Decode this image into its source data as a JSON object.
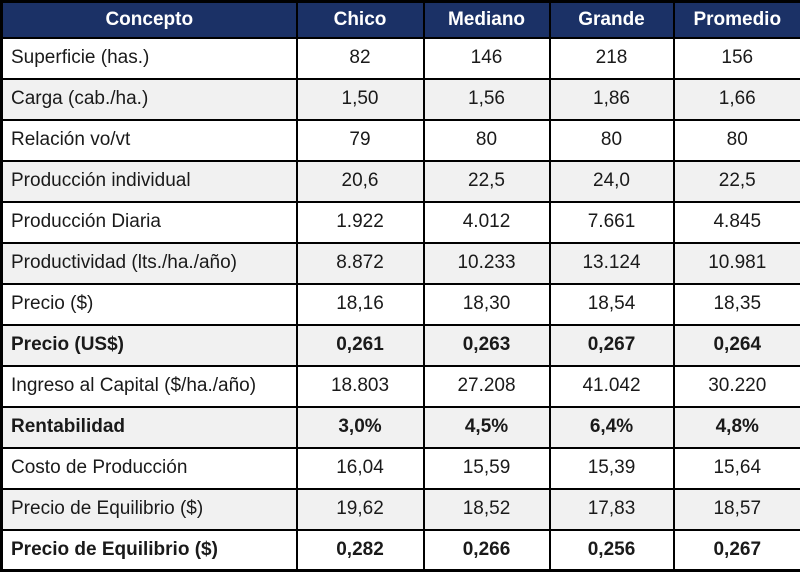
{
  "colors": {
    "header_bg": "#1B3166",
    "header_text": "#FFFFFF",
    "stripe_bg": "#F1F1F1",
    "border": "#000000"
  },
  "chart_data": {
    "type": "table",
    "title": "",
    "columns": [
      "Concepto",
      "Chico",
      "Mediano",
      "Grande",
      "Promedio"
    ],
    "rows": [
      {
        "label": "Superficie (has.)",
        "values": [
          "82",
          "146",
          "218",
          "156"
        ],
        "bold": false
      },
      {
        "label": "Carga (cab./ha.)",
        "values": [
          "1,50",
          "1,56",
          "1,86",
          "1,66"
        ],
        "bold": false
      },
      {
        "label": "Relación vo/vt",
        "values": [
          "79",
          "80",
          "80",
          "80"
        ],
        "bold": false
      },
      {
        "label": "Producción individual",
        "values": [
          "20,6",
          "22,5",
          "24,0",
          "22,5"
        ],
        "bold": false
      },
      {
        "label": "Producción Diaria",
        "values": [
          "1.922",
          "4.012",
          "7.661",
          "4.845"
        ],
        "bold": false
      },
      {
        "label": "Productividad (lts./ha./año)",
        "values": [
          "8.872",
          "10.233",
          "13.124",
          "10.981"
        ],
        "bold": false
      },
      {
        "label": "Precio ($)",
        "values": [
          "18,16",
          "18,30",
          "18,54",
          "18,35"
        ],
        "bold": false
      },
      {
        "label": "Precio (US$)",
        "values": [
          "0,261",
          "0,263",
          "0,267",
          "0,264"
        ],
        "bold": true
      },
      {
        "label": "Ingreso al Capital ($/ha./año)",
        "values": [
          "18.803",
          "27.208",
          "41.042",
          "30.220"
        ],
        "bold": false
      },
      {
        "label": "Rentabilidad",
        "values": [
          "3,0%",
          "4,5%",
          "6,4%",
          "4,8%"
        ],
        "bold": true
      },
      {
        "label": "Costo de Producción",
        "values": [
          "16,04",
          "15,59",
          "15,39",
          "15,64"
        ],
        "bold": false
      },
      {
        "label": "Precio de Equilibrio ($)",
        "values": [
          "19,62",
          "18,52",
          "17,83",
          "18,57"
        ],
        "bold": false
      },
      {
        "label": "Precio de Equilibrio ($)",
        "values": [
          "0,282",
          "0,266",
          "0,256",
          "0,267"
        ],
        "bold": true
      }
    ]
  }
}
